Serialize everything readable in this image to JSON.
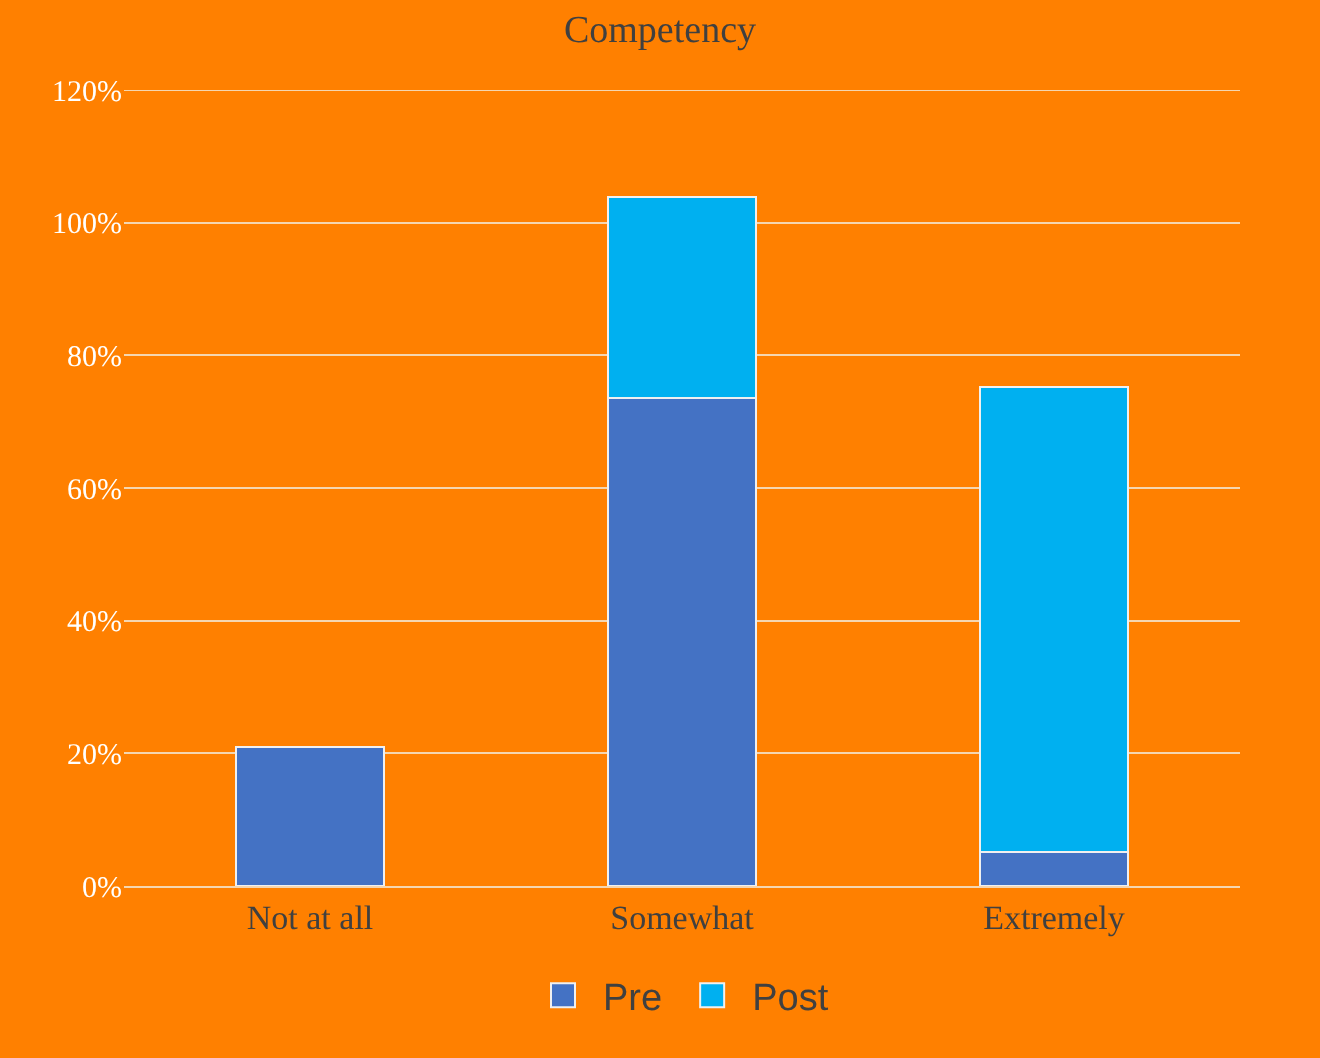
{
  "chart_data": {
    "type": "bar",
    "title": "Competency",
    "categories": [
      "Not at all",
      "Somewhat",
      "Extremely"
    ],
    "stacked": true,
    "series": [
      {
        "name": "Pre",
        "color": "#4472c4",
        "values": [
          21,
          73.5,
          5.2
        ]
      },
      {
        "name": "Post",
        "color": "#00b0f0",
        "values": [
          null,
          30.3,
          70
        ]
      }
    ],
    "ylim": [
      0,
      120
    ],
    "yticks": [
      {
        "value": 0,
        "label": "0%"
      },
      {
        "value": 20,
        "label": "20%"
      },
      {
        "value": 40,
        "label": "40%"
      },
      {
        "value": 60,
        "label": "60%"
      },
      {
        "value": 80,
        "label": "80%"
      },
      {
        "value": 100,
        "label": "100%"
      },
      {
        "value": 120,
        "label": "120%"
      }
    ],
    "grid": "y",
    "legend": "bottom"
  }
}
